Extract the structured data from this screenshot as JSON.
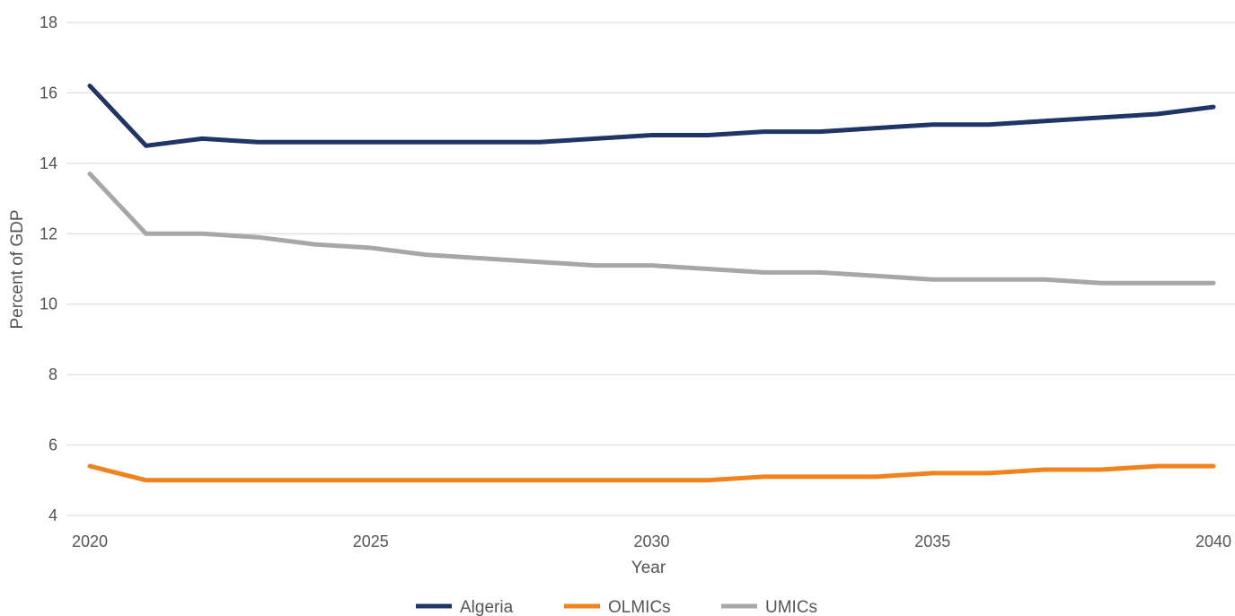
{
  "chart_data": {
    "type": "line",
    "title": "",
    "xlabel": "Year",
    "ylabel": "Percent of GDP",
    "xlim": [
      2020,
      2040
    ],
    "ylim": [
      4,
      18
    ],
    "x_ticks": [
      2020,
      2025,
      2030,
      2035,
      2040
    ],
    "y_ticks": [
      4,
      6,
      8,
      10,
      12,
      14,
      16,
      18
    ],
    "grid": "horizontal",
    "legend_position": "bottom-center",
    "x": [
      2020,
      2021,
      2022,
      2023,
      2024,
      2025,
      2026,
      2027,
      2028,
      2029,
      2030,
      2031,
      2032,
      2033,
      2034,
      2035,
      2036,
      2037,
      2038,
      2039,
      2040
    ],
    "series": [
      {
        "name": "Algeria",
        "color": "#1f3566",
        "values": [
          16.2,
          14.5,
          14.7,
          14.6,
          14.6,
          14.6,
          14.6,
          14.6,
          14.6,
          14.7,
          14.8,
          14.8,
          14.9,
          14.9,
          15.0,
          15.1,
          15.1,
          15.2,
          15.3,
          15.4,
          15.6
        ]
      },
      {
        "name": "OLMICs",
        "color": "#f0831e",
        "values": [
          5.4,
          5.0,
          5.0,
          5.0,
          5.0,
          5.0,
          5.0,
          5.0,
          5.0,
          5.0,
          5.0,
          5.0,
          5.1,
          5.1,
          5.1,
          5.2,
          5.2,
          5.3,
          5.3,
          5.4,
          5.4
        ]
      },
      {
        "name": "UMICs",
        "color": "#a7a7aa",
        "values": [
          13.7,
          12.0,
          12.0,
          11.9,
          11.7,
          11.6,
          11.4,
          11.3,
          11.2,
          11.1,
          11.1,
          11.0,
          10.9,
          10.9,
          10.8,
          10.7,
          10.7,
          10.7,
          10.6,
          10.6,
          10.6
        ]
      }
    ]
  }
}
